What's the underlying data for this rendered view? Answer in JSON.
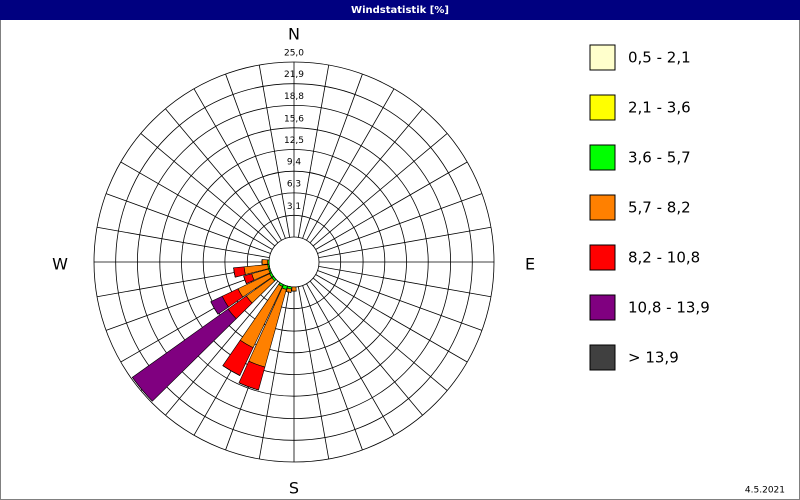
{
  "chart_data": {
    "type": "windrose",
    "title": "Windstatistik [%]",
    "date": "4.5.2021",
    "directions": {
      "north": "N",
      "east": "E",
      "south": "S",
      "west": "W"
    },
    "x": [
      180,
      190,
      200,
      210,
      230,
      240,
      250,
      260,
      270
    ],
    "ylim": [
      0,
      25
    ],
    "yticks": [
      {
        "value": 3.1,
        "label": "3,1"
      },
      {
        "value": 6.3,
        "label": "6,3"
      },
      {
        "value": 9.4,
        "label": "9,4"
      },
      {
        "value": 12.5,
        "label": "12,5"
      },
      {
        "value": 15.6,
        "label": "15,6"
      },
      {
        "value": 18.8,
        "label": "18,8"
      },
      {
        "value": 21.9,
        "label": "21,9"
      },
      {
        "value": 25.0,
        "label": "25,0"
      }
    ],
    "series": [
      {
        "name": "0,5 - 2,1",
        "color": "#ffffcc",
        "values": [
          0,
          0,
          0,
          0,
          0,
          0,
          0,
          0,
          0
        ]
      },
      {
        "name": "2,1 - 3,6",
        "color": "#ffff00",
        "values": [
          0,
          0,
          0,
          0,
          0,
          0,
          0,
          0,
          0
        ]
      },
      {
        "name": "3,6 - 5,7",
        "color": "#00ff00",
        "values": [
          0,
          0.3,
          0.5,
          0.3,
          0.3,
          0.3,
          0.2,
          0.2,
          0.2
        ]
      },
      {
        "name": "5,7 - 8,2",
        "color": "#ff8000",
        "values": [
          0.6,
          0.5,
          11.5,
          9.7,
          4.5,
          5,
          2.5,
          3.4,
          0.8
        ]
      },
      {
        "name": "8,2 - 10,8",
        "color": "#ff0000",
        "values": [
          0,
          0,
          3.4,
          4.4,
          3.2,
          2.5,
          1.2,
          1.5,
          0
        ]
      },
      {
        "name": "10,8 - 13,9",
        "color": "#800080",
        "values": [
          0,
          0,
          0,
          0,
          16.8,
          1.8,
          0,
          0,
          0
        ]
      },
      {
        "name": "> 13,9",
        "color": "#404040",
        "values": [
          0,
          0,
          0,
          0,
          0,
          0,
          0,
          0,
          0
        ]
      }
    ]
  }
}
